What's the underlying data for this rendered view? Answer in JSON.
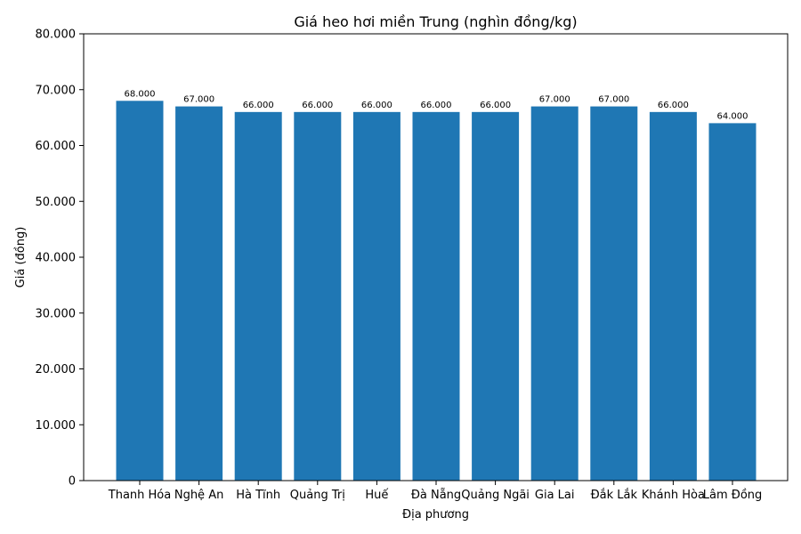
{
  "chart_data": {
    "type": "bar",
    "title": "Giá heo hơi miền Trung (nghìn đồng/kg)",
    "xlabel": "Địa phương",
    "ylabel": "Giá (đồng)",
    "categories": [
      "Thanh Hóa",
      "Nghệ An",
      "Hà Tĩnh",
      "Quảng Trị",
      "Huế",
      "Đà Nẵng",
      "Quảng Ngãi",
      "Gia Lai",
      "Đắk Lắk",
      "Khánh Hòa",
      "Lâm Đồng"
    ],
    "values": [
      68000,
      67000,
      66000,
      66000,
      66000,
      66000,
      66000,
      67000,
      67000,
      66000,
      64000
    ],
    "value_labels": [
      "68.000",
      "67.000",
      "66.000",
      "66.000",
      "66.000",
      "66.000",
      "66.000",
      "67.000",
      "67.000",
      "66.000",
      "64.000"
    ],
    "yticks": [
      0,
      10000,
      20000,
      30000,
      40000,
      50000,
      60000,
      70000,
      80000
    ],
    "ytick_labels": [
      "0",
      "10.000",
      "20.000",
      "30.000",
      "40.000",
      "50.000",
      "60.000",
      "70.000",
      "80.000"
    ],
    "ylim": [
      0,
      80000
    ],
    "grid": false,
    "colors": {
      "bar": "#1f77b4",
      "axis": "#000000"
    }
  }
}
